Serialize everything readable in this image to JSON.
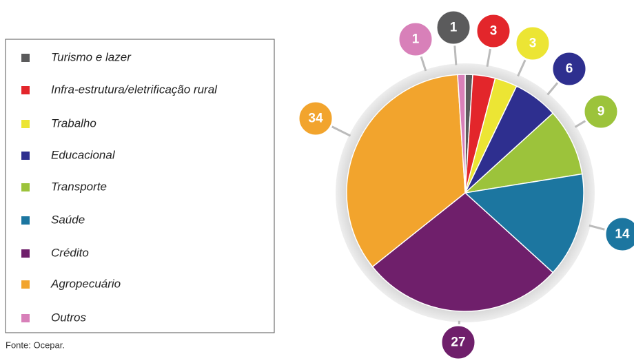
{
  "chart_data": {
    "type": "pie",
    "categories": [
      "Turismo e lazer",
      "Infra-estrutura/eletrificação rural",
      "Trabalho",
      "Educacional",
      "Transporte",
      "Saúde",
      "Crédito",
      "Agropecuário",
      "Outros"
    ],
    "values": [
      1,
      3,
      3,
      6,
      9,
      14,
      27,
      34,
      1
    ],
    "colors": [
      "#5b5b5c",
      "#e3262b",
      "#ece534",
      "#2e2f8f",
      "#9cc33b",
      "#1c76a0",
      "#6f1f6b",
      "#f2a42d",
      "#d880b9"
    ],
    "source": "Fonte: Ocepar."
  }
}
